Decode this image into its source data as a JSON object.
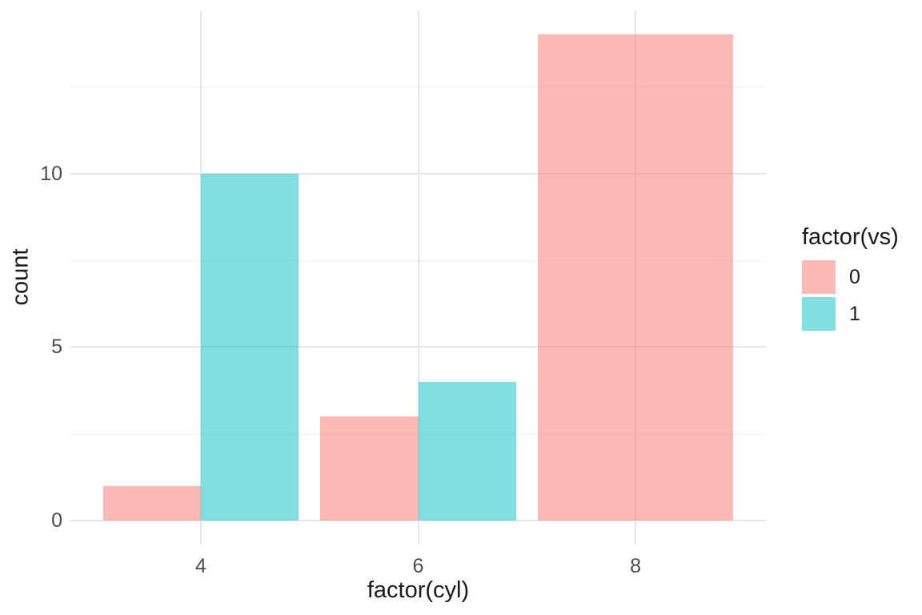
{
  "chart_data": {
    "type": "bar",
    "bar_mode": "dodge",
    "title": "",
    "xlabel": "factor(cyl)",
    "ylabel": "count",
    "categories": [
      "4",
      "6",
      "8"
    ],
    "series": [
      {
        "name": "0",
        "color": "#F8766D",
        "values": [
          1,
          3,
          14
        ]
      },
      {
        "name": "1",
        "color": "#00BFC4",
        "values": [
          10,
          4,
          null
        ]
      }
    ],
    "fill_alpha": 0.5,
    "y_ticks": [
      0,
      5,
      10
    ],
    "y_minor_ticks": [
      2.5,
      7.5,
      12.5
    ],
    "ylim": [
      -0.7,
      14.7
    ],
    "grid": true,
    "legend": {
      "title": "factor(vs)",
      "position": "right",
      "entries": [
        {
          "label": "0",
          "color": "#F8766D"
        },
        {
          "label": "1",
          "color": "#00BFC4"
        }
      ]
    },
    "theme": {
      "background": "#FFFFFF",
      "grid_major_color": "#E5E5E5",
      "grid_minor_color": "#F0F0F0",
      "tick_label_color": "#4D4D4D",
      "title_color": "#1A1A1A"
    }
  }
}
